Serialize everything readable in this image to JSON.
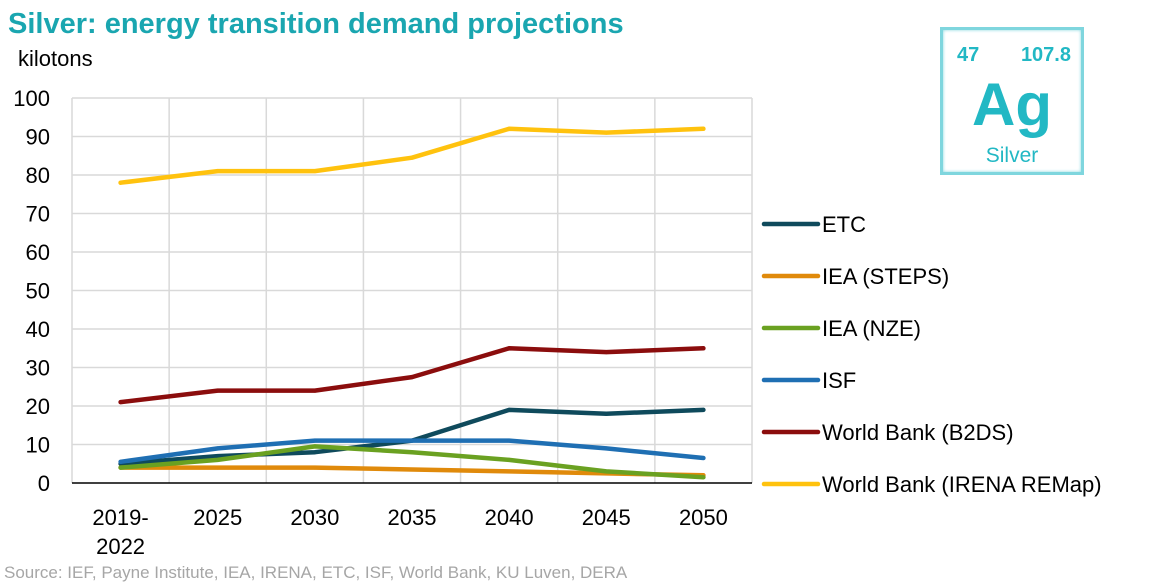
{
  "title": "Silver: energy transition demand projections",
  "unit_label": "kilotons",
  "source": "Source: IEF, Payne Institute, IEA, IRENA, ETC, ISF, World Bank, KU Luven, DERA",
  "element_tile": {
    "atomic_number": "47",
    "atomic_mass": "107.8",
    "symbol": "Ag",
    "name": "Silver"
  },
  "colors": {
    "title": "#1aa6b0",
    "grid": "#d9d9d9",
    "axis": "#000000",
    "tile": "#22b8c4"
  },
  "chart_data": {
    "type": "line",
    "title": "Silver: energy transition demand projections",
    "ylabel": "kilotons",
    "xlabel": "",
    "ylim": [
      0,
      100
    ],
    "yticks": [
      0,
      10,
      20,
      30,
      40,
      50,
      60,
      70,
      80,
      90,
      100
    ],
    "categories": [
      "2019-\n2022",
      "2025",
      "2030",
      "2035",
      "2040",
      "2045",
      "2050"
    ],
    "grid": true,
    "legend_position": "right",
    "series": [
      {
        "name": "ETC",
        "color": "#0f4a5c",
        "values": [
          5,
          7,
          8,
          11,
          19,
          18,
          19
        ]
      },
      {
        "name": "IEA (STEPS)",
        "color": "#e08a0b",
        "values": [
          4,
          4,
          4,
          3.5,
          3,
          2.5,
          2
        ]
      },
      {
        "name": "IEA (NZE)",
        "color": "#6aa121",
        "values": [
          4,
          6,
          9.5,
          8,
          6,
          3,
          1.5
        ]
      },
      {
        "name": "ISF",
        "color": "#1f6fb3",
        "values": [
          5.5,
          9,
          11,
          11,
          11,
          9,
          6.5
        ]
      },
      {
        "name": "World Bank (B2DS)",
        "color": "#8b0d0d",
        "values": [
          21,
          24,
          24,
          27.5,
          35,
          34,
          35
        ]
      },
      {
        "name": "World Bank (IRENA REMap)",
        "color": "#ffc20e",
        "values": [
          78,
          81,
          81,
          84.5,
          92,
          91,
          92
        ]
      }
    ]
  }
}
